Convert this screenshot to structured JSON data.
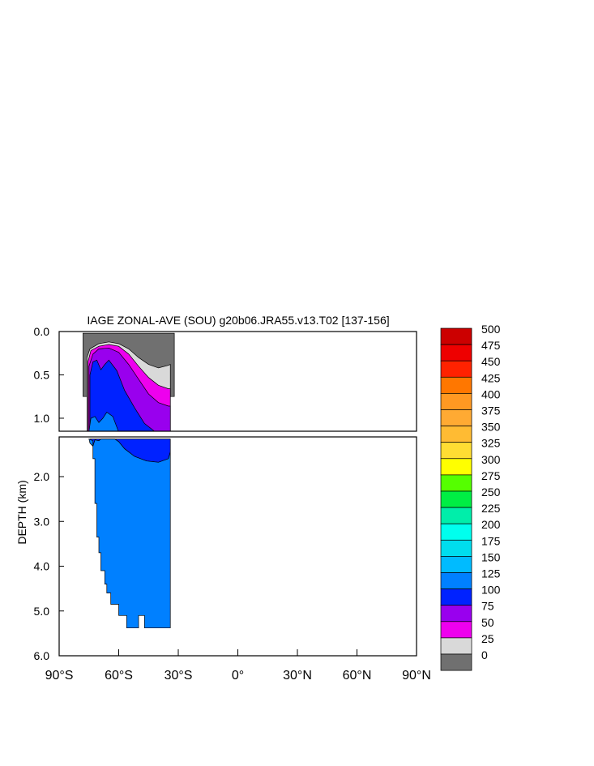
{
  "chart_data": {
    "type": "heatmap",
    "title": "IAGE ZONAL-AVE (SOU) g20b06.JRA55.v13.T02 [137-156]",
    "ylabel": "DEPTH (km)",
    "xlabel": "",
    "x_range": [
      -90,
      90
    ],
    "x_ticks": [
      "90°S",
      "60°S",
      "30°S",
      "0°",
      "30°N",
      "60°N",
      "90°N"
    ],
    "x_tick_values": [
      -90,
      -60,
      -30,
      0,
      30,
      60,
      90
    ],
    "upper_panel": {
      "depth_range_km": [
        0,
        1.15
      ],
      "y_ticks": [
        "0.0",
        "0.5",
        "1.0"
      ],
      "y_tick_values": [
        0,
        0.5,
        1.0
      ]
    },
    "lower_panel": {
      "depth_range_km": [
        1.15,
        6.0
      ],
      "y_ticks": [
        "2.0",
        "3.0",
        "4.0",
        "5.0",
        "6.0"
      ],
      "y_tick_values": [
        2.0,
        3.0,
        4.0,
        5.0,
        6.0
      ]
    },
    "contour_levels": [
      0,
      25,
      50,
      75,
      100,
      125,
      150,
      175,
      200,
      225,
      250,
      275,
      300,
      325,
      350,
      375,
      400,
      425,
      450,
      475,
      500
    ],
    "colorbar_labels": [
      "500",
      "475",
      "450",
      "425",
      "400",
      "375",
      "350",
      "325",
      "300",
      "275",
      "250",
      "225",
      "200",
      "175",
      "150",
      "125",
      "100",
      "75",
      "50",
      "25",
      "0"
    ],
    "colorbar_colors": [
      "#cc0000",
      "#ee0000",
      "#ff2200",
      "#ff7700",
      "#ff9922",
      "#ffaa33",
      "#ffbb33",
      "#ffdd33",
      "#ffff00",
      "#55ff00",
      "#00ee44",
      "#00eeaa",
      "#00ffee",
      "#00ddee",
      "#00bbff",
      "#0080ff",
      "#0022ff",
      "#9900ee",
      "#ee00ee",
      "#d9d9d9",
      "#707070"
    ],
    "bands": [
      {
        "level": "0-25",
        "color": "#707070",
        "points": [
          [
            -78,
            0.02
          ],
          [
            -32,
            0.02
          ],
          [
            -32,
            0.75
          ],
          [
            -78,
            0.75
          ]
        ]
      },
      {
        "level": "25-50",
        "color": "#d9d9d9",
        "points": [
          [
            -76,
            0.78
          ],
          [
            -76,
            0.3
          ],
          [
            -74.5,
            0.2
          ],
          [
            -70,
            0.14
          ],
          [
            -65,
            0.12
          ],
          [
            -60,
            0.14
          ],
          [
            -55,
            0.2
          ],
          [
            -50,
            0.3
          ],
          [
            -45,
            0.38
          ],
          [
            -40,
            0.42
          ],
          [
            -35,
            0.39
          ],
          [
            -34,
            0.38
          ],
          [
            -34,
            1.16
          ],
          [
            -76,
            1.16
          ]
        ]
      },
      {
        "level": "50-75",
        "color": "#ee00ee",
        "points": [
          [
            -75.5,
            0.78
          ],
          [
            -75.5,
            0.35
          ],
          [
            -74,
            0.22
          ],
          [
            -70,
            0.17
          ],
          [
            -65,
            0.15
          ],
          [
            -60,
            0.17
          ],
          [
            -55,
            0.26
          ],
          [
            -50,
            0.4
          ],
          [
            -45,
            0.53
          ],
          [
            -40,
            0.62
          ],
          [
            -35,
            0.66
          ],
          [
            -34,
            0.66
          ],
          [
            -34,
            1.16
          ],
          [
            -75.5,
            1.16
          ]
        ]
      },
      {
        "level": "75-100",
        "color": "#9900ee",
        "points": [
          [
            -75,
            0.8
          ],
          [
            -75,
            0.4
          ],
          [
            -73,
            0.26
          ],
          [
            -70,
            0.2
          ],
          [
            -65,
            0.19
          ],
          [
            -60,
            0.24
          ],
          [
            -55,
            0.38
          ],
          [
            -50,
            0.55
          ],
          [
            -45,
            0.72
          ],
          [
            -40,
            0.82
          ],
          [
            -35,
            0.86
          ],
          [
            -34,
            0.86
          ],
          [
            -34,
            1.16
          ],
          [
            -75,
            1.16
          ]
        ]
      },
      {
        "level": "100-125",
        "color": "#0022ff",
        "points": [
          [
            -74.5,
            0.85
          ],
          [
            -74.5,
            0.5
          ],
          [
            -73,
            0.35
          ],
          [
            -71,
            0.33
          ],
          [
            -69,
            0.44
          ],
          [
            -67,
            0.38
          ],
          [
            -65,
            0.33
          ],
          [
            -61,
            0.45
          ],
          [
            -57,
            0.68
          ],
          [
            -52,
            0.88
          ],
          [
            -47,
            1.06
          ],
          [
            -42,
            1.15
          ],
          [
            -36,
            1.18
          ],
          [
            -34,
            1.16
          ],
          [
            -34,
            1.16
          ],
          [
            -74.5,
            1.16
          ]
        ],
        "lower_points": [
          [
            -74.5,
            1.16
          ],
          [
            -34,
            1.16
          ],
          [
            -34,
            1.45
          ],
          [
            -35,
            1.6
          ],
          [
            -40,
            1.68
          ],
          [
            -46,
            1.65
          ],
          [
            -52,
            1.55
          ],
          [
            -57,
            1.38
          ],
          [
            -60,
            1.22
          ],
          [
            -62,
            1.16
          ],
          [
            -66,
            1.16
          ],
          [
            -69,
            1.16
          ],
          [
            -70,
            1.2
          ],
          [
            -72,
            1.18
          ],
          [
            -73,
            1.32
          ],
          [
            -74.5,
            1.25
          ]
        ]
      },
      {
        "level": "125-150",
        "color": "#0080ff",
        "points": [
          [
            -75,
            1.15
          ],
          [
            -74,
            1.0
          ],
          [
            -72,
            0.98
          ],
          [
            -70,
            1.05
          ],
          [
            -68,
            1.0
          ],
          [
            -66,
            0.93
          ],
          [
            -63,
            0.98
          ],
          [
            -60,
            1.16
          ],
          [
            -75,
            1.16
          ]
        ],
        "lower_points": [
          [
            -75,
            1.16
          ],
          [
            -74.5,
            1.25
          ],
          [
            -73,
            1.32
          ],
          [
            -72,
            1.18
          ],
          [
            -70,
            1.2
          ],
          [
            -69,
            1.16
          ],
          [
            -62,
            1.16
          ],
          [
            -60,
            1.22
          ],
          [
            -57,
            1.38
          ],
          [
            -52,
            1.55
          ],
          [
            -46,
            1.65
          ],
          [
            -40,
            1.68
          ],
          [
            -35,
            1.6
          ],
          [
            -34,
            1.45
          ],
          [
            -34,
            5.38
          ],
          [
            -47,
            5.38
          ],
          [
            -47,
            5.1
          ],
          [
            -50,
            5.1
          ],
          [
            -50,
            5.38
          ],
          [
            -56,
            5.38
          ],
          [
            -56,
            5.1
          ],
          [
            -60,
            5.1
          ],
          [
            -60,
            4.85
          ],
          [
            -64,
            4.85
          ],
          [
            -64,
            4.6
          ],
          [
            -66,
            4.6
          ],
          [
            -66,
            4.4
          ],
          [
            -67,
            4.4
          ],
          [
            -67,
            4.1
          ],
          [
            -69,
            4.1
          ],
          [
            -69,
            3.7
          ],
          [
            -70,
            3.7
          ],
          [
            -70,
            3.35
          ],
          [
            -71,
            3.35
          ],
          [
            -71,
            2.6
          ],
          [
            -72,
            2.6
          ],
          [
            -72,
            1.6
          ],
          [
            -73,
            1.6
          ],
          [
            -73,
            1.2
          ]
        ]
      }
    ]
  }
}
